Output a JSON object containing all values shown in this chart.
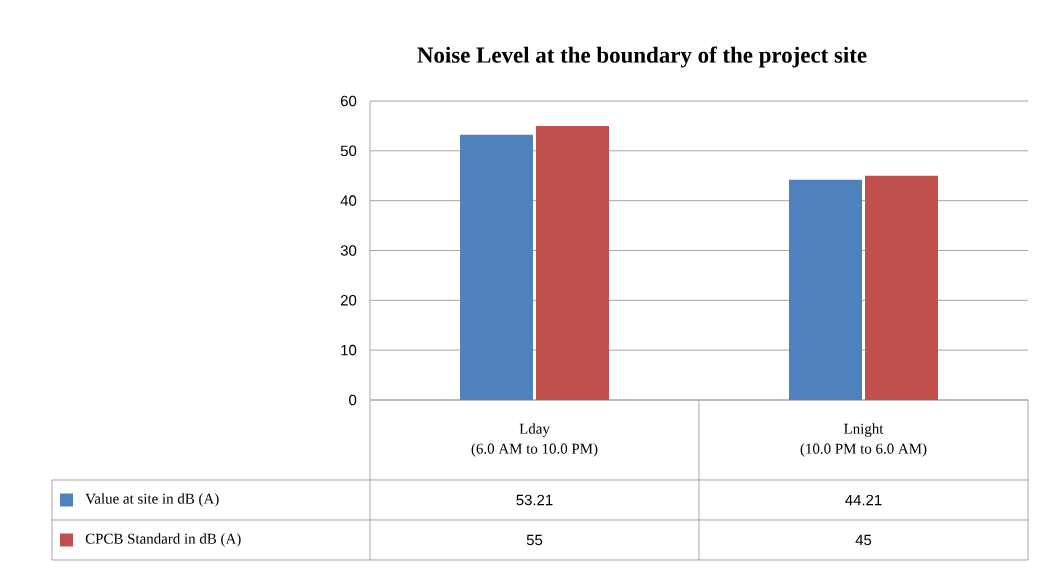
{
  "chart_data": {
    "type": "bar",
    "title": "Noise Level at  the boundary of the project site",
    "categories": [
      "Lday\n(6.0 AM  to 10.0 PM)",
      "Lnight\n(10.0 PM to 6.0 AM)"
    ],
    "series": [
      {
        "name": "Value at site in dB (A)",
        "color": "#4f81bd",
        "values": [
          53.21,
          44.21
        ]
      },
      {
        "name": "CPCB Standard in dB (A)",
        "color": "#c0504d",
        "values": [
          55,
          45
        ]
      }
    ],
    "ylim": [
      0,
      60
    ],
    "yticks": [
      0,
      10,
      20,
      30,
      40,
      50,
      60
    ],
    "grid": "y",
    "legend": "bottom",
    "data_labels": true
  }
}
